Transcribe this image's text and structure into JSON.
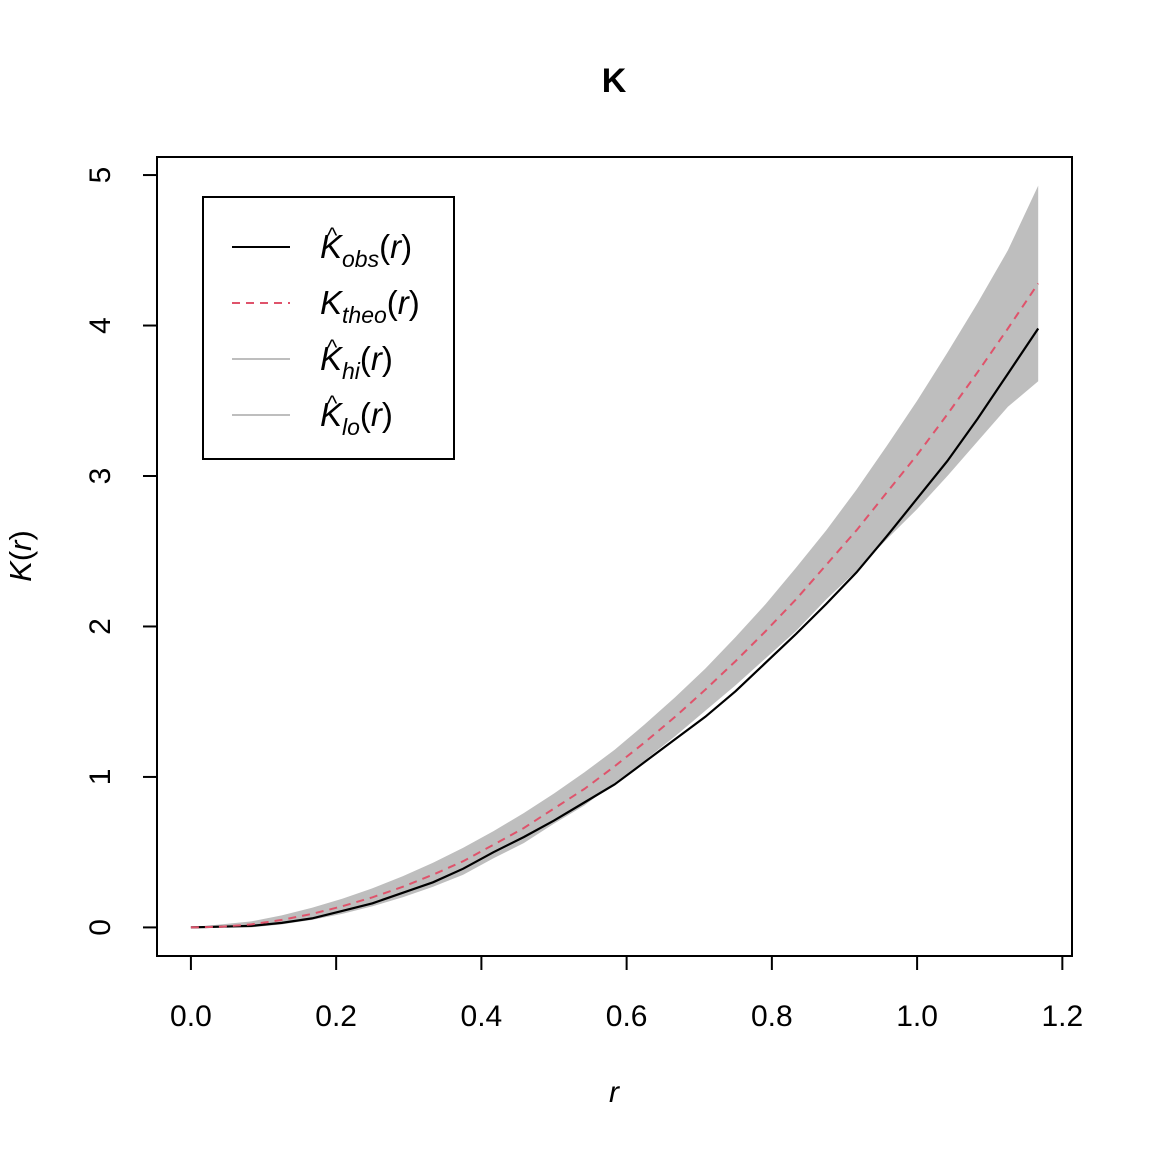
{
  "chart_data": {
    "type": "line",
    "title": "K",
    "xlabel": "r",
    "ylabel": "K(r)",
    "xlim": [
      -0.0467,
      1.2133
    ],
    "ylim": [
      -0.19,
      5.12
    ],
    "x_ticks": [
      "0.0",
      "0.2",
      "0.4",
      "0.6",
      "0.8",
      "1.0",
      "1.2"
    ],
    "x_tick_values": [
      0,
      0.2,
      0.4,
      0.6,
      0.8,
      1.0,
      1.2
    ],
    "y_ticks": [
      "0",
      "1",
      "2",
      "3",
      "4",
      "5"
    ],
    "y_tick_values": [
      0,
      1,
      2,
      3,
      4,
      5
    ],
    "grid": false,
    "legend_position": "top-left",
    "legend": [
      {
        "base": "K",
        "hat": true,
        "sub": "obs",
        "arg": "(r)",
        "style": "solid",
        "color": "#000000"
      },
      {
        "base": "K",
        "hat": false,
        "sub": "theo",
        "arg": "(r)",
        "style": "dashed",
        "color": "#DF536B"
      },
      {
        "base": "K",
        "hat": true,
        "sub": "hi",
        "arg": "(r)",
        "style": "solid",
        "color": "#BEBEBE"
      },
      {
        "base": "K",
        "hat": true,
        "sub": "lo",
        "arg": "(r)",
        "style": "solid",
        "color": "#BEBEBE"
      }
    ],
    "x": [
      0,
      0.0417,
      0.0833,
      0.125,
      0.1667,
      0.2083,
      0.25,
      0.2917,
      0.3333,
      0.375,
      0.4167,
      0.4583,
      0.5,
      0.5417,
      0.5833,
      0.625,
      0.6667,
      0.7083,
      0.75,
      0.7917,
      0.8333,
      0.875,
      0.9167,
      0.9583,
      1.0,
      1.0417,
      1.0833,
      1.125,
      1.1667
    ],
    "series": [
      {
        "name": "obs",
        "color": "#000000",
        "style": "solid",
        "values": [
          0,
          0.005,
          0.01,
          0.03,
          0.06,
          0.11,
          0.16,
          0.23,
          0.3,
          0.39,
          0.5,
          0.6,
          0.71,
          0.83,
          0.95,
          1.1,
          1.25,
          1.4,
          1.57,
          1.76,
          1.95,
          2.15,
          2.36,
          2.6,
          2.85,
          3.1,
          3.38,
          3.68,
          3.98
        ]
      },
      {
        "name": "theo",
        "color": "#DF536B",
        "style": "dashed",
        "values": [
          0,
          0.005,
          0.02,
          0.05,
          0.09,
          0.14,
          0.2,
          0.27,
          0.35,
          0.44,
          0.55,
          0.66,
          0.79,
          0.92,
          1.07,
          1.23,
          1.4,
          1.58,
          1.77,
          1.97,
          2.18,
          2.41,
          2.64,
          2.89,
          3.14,
          3.41,
          3.69,
          3.98,
          4.28
        ]
      }
    ],
    "envelope": {
      "color": "#BEBEBE",
      "hi": [
        0,
        0.02,
        0.04,
        0.08,
        0.13,
        0.19,
        0.26,
        0.34,
        0.43,
        0.53,
        0.64,
        0.76,
        0.89,
        1.03,
        1.18,
        1.35,
        1.53,
        1.72,
        1.93,
        2.15,
        2.39,
        2.64,
        2.91,
        3.2,
        3.5,
        3.82,
        4.15,
        4.5,
        4.93
      ]
    }
  }
}
